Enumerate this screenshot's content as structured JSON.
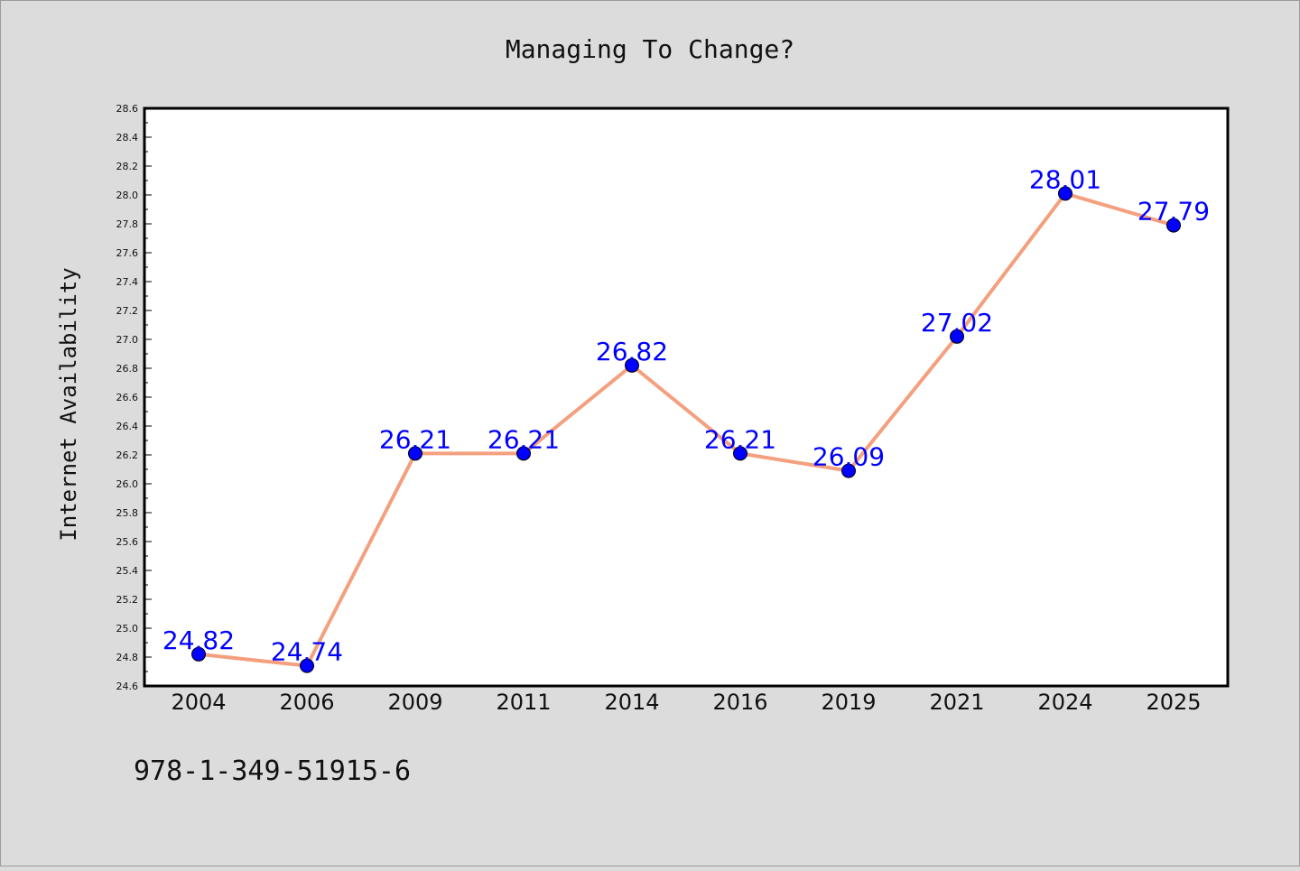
{
  "footer_text": "978-1-349-51915-6",
  "chart_data": {
    "type": "line",
    "title": "Managing To Change?",
    "xlabel": "",
    "ylabel": "Internet Availability",
    "categories": [
      "2004",
      "2006",
      "2009",
      "2011",
      "2014",
      "2016",
      "2019",
      "2021",
      "2024",
      "2025"
    ],
    "series": [
      {
        "values": [
          24.82,
          24.74,
          26.21,
          26.21,
          26.82,
          26.21,
          26.09,
          27.02,
          28.01,
          27.79
        ]
      }
    ],
    "data_labels": [
      "24.82",
      "24.74",
      "26.21",
      "26.21",
      "26.82",
      "26.21",
      "26.09",
      "27.02",
      "28.01",
      "27.79"
    ],
    "ylim": [
      24.6,
      28.6
    ],
    "y_ticks": [
      "24.6",
      "24.8",
      "25.0",
      "25.2",
      "25.4",
      "25.6",
      "25.8",
      "26.0",
      "26.2",
      "26.4",
      "26.6",
      "26.8",
      "27.0",
      "27.2",
      "27.4",
      "27.6",
      "27.8",
      "28.0",
      "28.2",
      "28.4",
      "28.6"
    ],
    "grid": false,
    "legend": "none",
    "colors": {
      "line": "#f4a07e",
      "marker": "#0000ff",
      "data_label": "#0000ff",
      "background": "#dcdcdc",
      "plot_background": "#ffffff"
    }
  }
}
